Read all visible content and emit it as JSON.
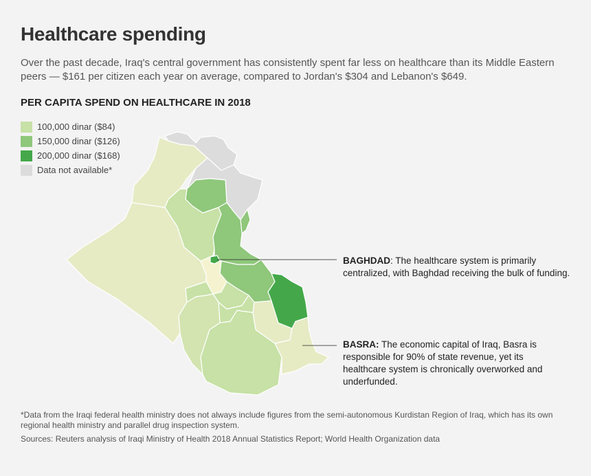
{
  "header": {
    "title": "Healthcare spending",
    "intro": "Over the past decade, Iraq's central government has consistently spent far less on healthcare than its Middle Eastern peers — $161 per citizen each year on average, compared to Jordan's $304 and Lebanon's $649.",
    "subheading": "PER CAPITA SPEND ON HEALTHCARE IN 2018"
  },
  "legend": [
    {
      "label": "100,000 dinar ($84)",
      "color": "#c7e1a6"
    },
    {
      "label": "150,000 dinar ($126)",
      "color": "#8fc77b"
    },
    {
      "label": "200,000 dinar ($168)",
      "color": "#44a84a"
    },
    {
      "label": "Data not available*",
      "color": "#dcdcdc"
    }
  ],
  "map_colors": {
    "pale": "#e6ebc4",
    "light": "#d3e4b0",
    "light2": "#c7e1a6",
    "mid": "#8fc77b",
    "dark": "#44a84a",
    "na": "#dcdcdc",
    "baghdad_core": "#f5f3cf"
  },
  "annotations": {
    "baghdad_name": "BAGHDAD",
    "baghdad_text": ": The healthcare system is primarily centralized, with Baghdad receiving the bulk of funding.",
    "basra_name": "BASRA:",
    "basra_text": " The economic capital of Iraq, Basra is responsible for 90% of state revenue, yet its healthcare system is chronically overworked and underfunded."
  },
  "footer": {
    "footnote": "*Data from the Iraqi federal health ministry does not always include figures from the semi-autonomous Kurdistan Region of Iraq, which has its own regional health ministry and parallel drug inspection system.",
    "sources": "Sources: Reuters analysis of Iraqi Ministry of Health 2018 Annual Statistics Report; World Health Organization data"
  }
}
